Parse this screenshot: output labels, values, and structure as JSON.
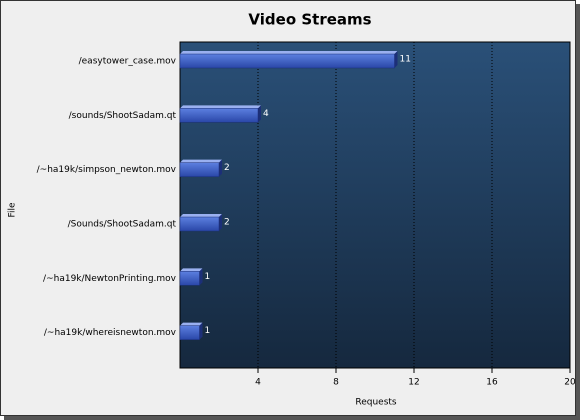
{
  "chart_data": {
    "type": "bar",
    "orientation": "horizontal",
    "title": "Video Streams",
    "x_label": "Requests",
    "y_label": "File",
    "categories": [
      "/easytower_case.mov",
      "/sounds/ShootSadam.qt",
      "/~ha19k/simpson_newton.mov",
      "/Sounds/ShootSadam.qt",
      "/~ha19k/NewtonPrinting.mov",
      "/~ha19k/whereisnewton.mov"
    ],
    "values": [
      11,
      4,
      2,
      2,
      1,
      1
    ],
    "color": "#3a5fc8",
    "xlim": [
      0,
      20
    ],
    "xticks": [
      4,
      8,
      12,
      16,
      20
    ],
    "grid": true
  }
}
